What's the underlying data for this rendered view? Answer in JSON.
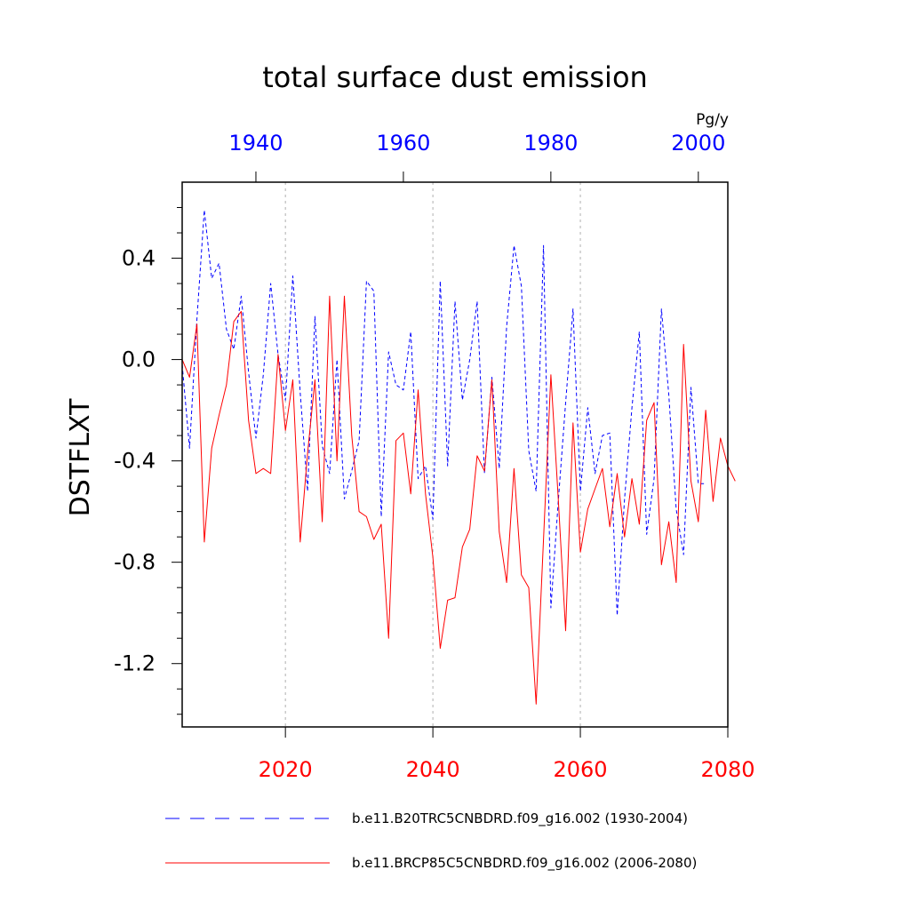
{
  "chart_data": {
    "type": "line",
    "title": "total surface dust emission",
    "units": "Pg/y",
    "ylabel": "DSTFLXT",
    "ylim": [
      -1.45,
      0.7
    ],
    "yticks": [
      -1.2,
      -0.8,
      -0.4,
      0.0,
      0.4
    ],
    "ytick_labels": [
      "-1.2",
      "-0.8",
      "-0.4",
      "0.0",
      "0.4"
    ],
    "grid_x": [
      2020,
      2040,
      2060
    ],
    "bottom_axis": {
      "color": "#ff0000",
      "range": [
        2006,
        2080
      ],
      "ticks": [
        2020,
        2040,
        2060,
        2080
      ],
      "tick_labels": [
        "2020",
        "2040",
        "2060",
        "2080"
      ]
    },
    "top_axis": {
      "color": "#0000ff",
      "range": [
        1930,
        2004
      ],
      "ticks": [
        1940,
        1960,
        1980,
        2000
      ],
      "tick_labels": [
        "1940",
        "1960",
        "1980",
        "2000"
      ]
    },
    "series": [
      {
        "name": "b.e11.B20TRC5CNBDRD.f09_g16.002 (1930-2004)",
        "color": "#0000ff",
        "style": "dashed",
        "axis": "top",
        "x_start": 1930,
        "values": [
          -0.02,
          -0.35,
          0.16,
          0.59,
          0.32,
          0.38,
          0.12,
          0.04,
          0.25,
          -0.05,
          -0.31,
          -0.06,
          0.3,
          0.02,
          -0.16,
          0.33,
          -0.13,
          -0.52,
          0.17,
          -0.34,
          -0.45,
          0.0,
          -0.55,
          -0.44,
          -0.32,
          0.31,
          0.27,
          -0.62,
          0.03,
          -0.1,
          -0.12,
          0.11,
          -0.47,
          -0.42,
          -0.63,
          0.31,
          -0.42,
          0.23,
          -0.16,
          0.0,
          0.23,
          -0.45,
          -0.07,
          -0.43,
          0.13,
          0.45,
          0.29,
          -0.36,
          -0.52,
          0.45,
          -0.98,
          -0.56,
          -0.17,
          0.2,
          -0.52,
          -0.19,
          -0.45,
          -0.3,
          -0.29,
          -1.01,
          -0.55,
          -0.19,
          0.11,
          -0.69,
          -0.47,
          0.2,
          -0.14,
          -0.59,
          -0.77,
          -0.11,
          -0.49,
          -0.49
        ]
      },
      {
        "name": "b.e11.BRCP85C5CNBDRD.f09_g16.002 (2006-2080)",
        "color": "#ff0000",
        "style": "solid",
        "axis": "bottom",
        "x_start": 2006,
        "values": [
          0.0,
          -0.07,
          0.14,
          -0.72,
          -0.35,
          -0.22,
          -0.1,
          0.15,
          0.19,
          -0.24,
          -0.45,
          -0.43,
          -0.45,
          0.02,
          -0.28,
          -0.08,
          -0.72,
          -0.37,
          -0.08,
          -0.64,
          0.25,
          -0.4,
          0.25,
          -0.3,
          -0.6,
          -0.62,
          -0.71,
          -0.65,
          -1.1,
          -0.32,
          -0.29,
          -0.53,
          -0.12,
          -0.53,
          -0.78,
          -1.14,
          -0.95,
          -0.94,
          -0.74,
          -0.67,
          -0.38,
          -0.44,
          -0.08,
          -0.68,
          -0.88,
          -0.43,
          -0.85,
          -0.9,
          -1.36,
          -0.71,
          -0.06,
          -0.55,
          -1.07,
          -0.25,
          -0.76,
          -0.59,
          -0.51,
          -0.43,
          -0.66,
          -0.45,
          -0.7,
          -0.47,
          -0.65,
          -0.24,
          -0.17,
          -0.81,
          -0.64,
          -0.88,
          0.06,
          -0.48,
          -0.64,
          -0.2,
          -0.56,
          -0.31,
          -0.42,
          -0.48
        ]
      }
    ]
  }
}
